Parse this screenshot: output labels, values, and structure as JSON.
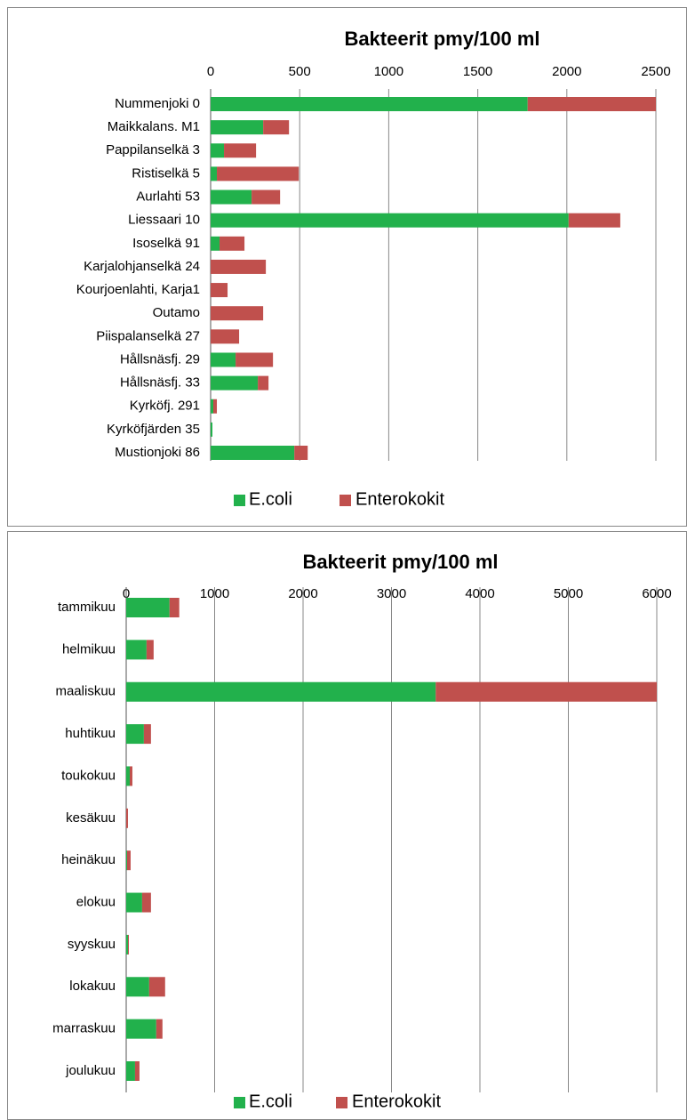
{
  "chart_data": [
    {
      "type": "bar",
      "orientation": "horizontal",
      "stacked": true,
      "title": "Bakteerit pmy/100 ml",
      "categories": [
        "Nummenjoki 0",
        "Maikkalans. M1",
        "Pappilanselkä 3",
        "Ristiselkä 5",
        "Aurlahti 53",
        "Liessaari 10",
        "Isoselkä 91",
        "Karjalohjanselkä 24",
        "Kourjoenlahti, Karja1",
        "Outamo",
        "Piispalanselkä 27",
        "Hållsnäsfj. 29",
        "Hållsnäsfj. 33",
        "Kyrköfj. 291",
        "Kyrköfjärden 35",
        "Mustionjoki 86"
      ],
      "series": [
        {
          "name": "E.coli",
          "color": "#22b14c",
          "values": [
            1780,
            295,
            75,
            35,
            230,
            2010,
            50,
            0,
            0,
            0,
            0,
            140,
            265,
            15,
            10,
            470
          ]
        },
        {
          "name": "Enterokokit",
          "color": "#c0504d",
          "values": [
            720,
            145,
            180,
            460,
            160,
            290,
            140,
            310,
            95,
            295,
            160,
            210,
            60,
            20,
            0,
            75
          ]
        }
      ],
      "xlim": [
        0,
        2500
      ],
      "xticks": [
        0,
        500,
        1000,
        1500,
        2000,
        2500
      ],
      "grid": true,
      "legend": "bottom"
    },
    {
      "type": "bar",
      "orientation": "horizontal",
      "stacked": true,
      "title": "Bakteerit pmy/100 ml",
      "categories": [
        "tammikuu",
        "helmikuu",
        "maaliskuu",
        "huhtikuu",
        "toukokuu",
        "kesäkuu",
        "heinäkuu",
        "elokuu",
        "syyskuu",
        "lokakuu",
        "marraskuu",
        "joulukuu"
      ],
      "series": [
        {
          "name": "E.coli",
          "color": "#22b14c",
          "values": [
            490,
            230,
            3500,
            200,
            40,
            0,
            10,
            180,
            20,
            260,
            340,
            100
          ]
        },
        {
          "name": "Enterokokit",
          "color": "#c0504d",
          "values": [
            110,
            80,
            2500,
            80,
            30,
            20,
            40,
            100,
            10,
            180,
            70,
            50
          ]
        }
      ],
      "xlim": [
        0,
        6000
      ],
      "xticks": [
        0,
        1000,
        2000,
        3000,
        4000,
        5000,
        6000
      ],
      "grid": true,
      "legend": "bottom"
    }
  ]
}
